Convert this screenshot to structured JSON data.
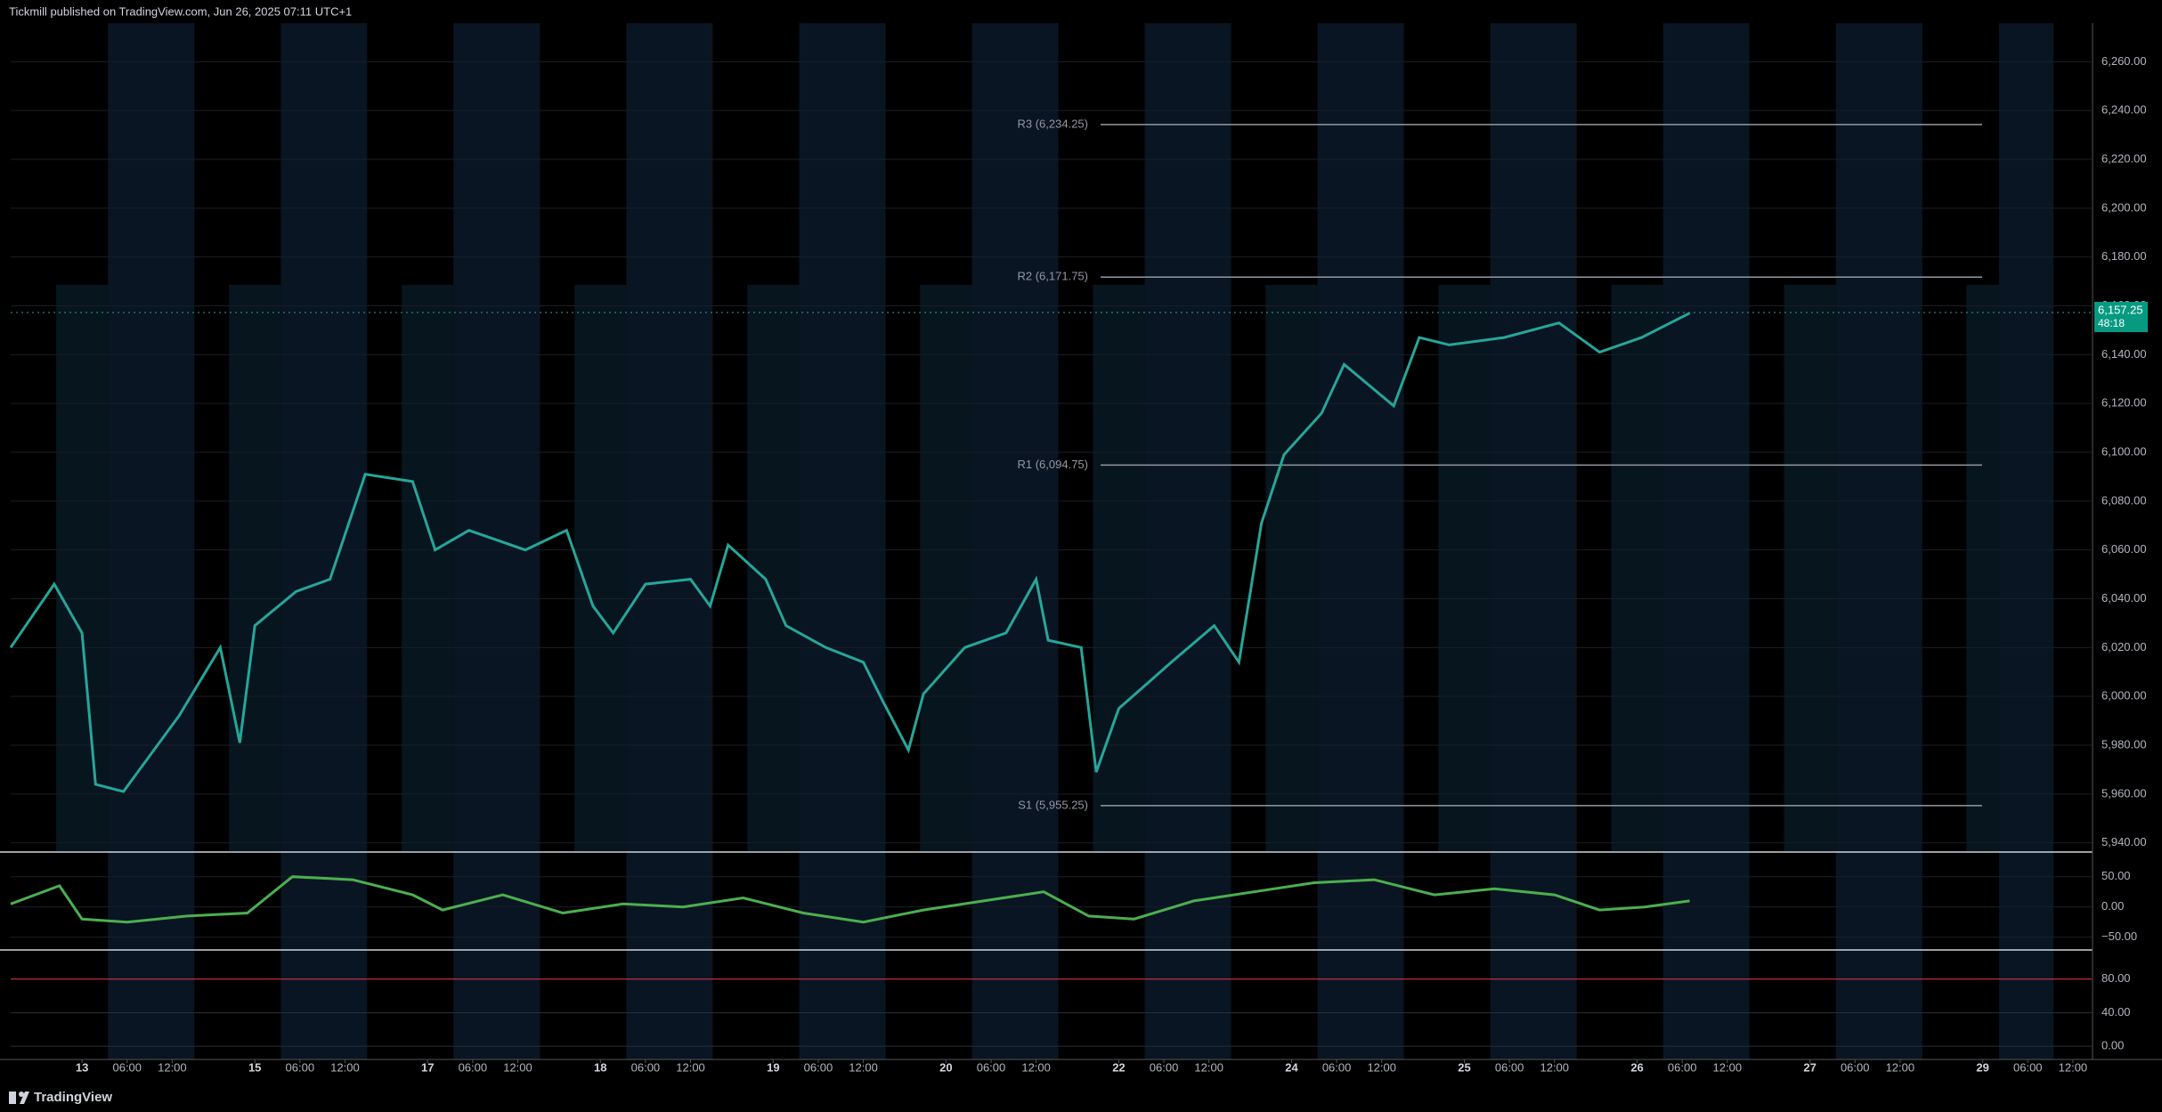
{
  "header": {
    "title": "Tickmill published on TradingView.com, Jun 26, 2025 07:11 UTC+1"
  },
  "footer": {
    "brand": "TradingView"
  },
  "chart_data": {
    "type": "line",
    "color": "#26a69a",
    "x": [
      -9.5,
      -3.7,
      0,
      1.8,
      5.5,
      12.9,
      18.4,
      21,
      23,
      28.5,
      33,
      37.7,
      44,
      47,
      51.5,
      59,
      64.5,
      68,
      70.7,
      75,
      81,
      83.6,
      86,
      91,
      93.7,
      99,
      104,
      106.6,
      110,
      112,
      117.5,
      123,
      127,
      128.6,
      133,
      135,
      138,
      145,
      150.7,
      154,
      157,
      160,
      165,
      168,
      174.6,
      178,
      182,
      189.3,
      196.6,
      202,
      207.6,
      214
    ],
    "values": [
      6020,
      6046,
      6026,
      5964,
      5961,
      5992,
      6020,
      5981,
      6029,
      6043,
      6048,
      6091,
      6088,
      6060,
      6068,
      6060,
      6068,
      6037,
      6026,
      6046,
      6048,
      6037,
      6062,
      6048,
      6029,
      6020,
      6014,
      5998,
      5978,
      6001,
      6020,
      6026,
      6048,
      6023,
      6020,
      5969,
      5995,
      6014,
      6029,
      6014,
      6071,
      6099,
      6116,
      6136,
      6119,
      6147,
      6144,
      6147,
      6153,
      6141,
      6147,
      6157
    ],
    "xlim": [
      -9.5,
      267.5
    ],
    "ylim": [
      5936.6,
      6275.8
    ],
    "yticks": [
      {
        "value": 6260,
        "label": "6,260.00"
      },
      {
        "value": 6240,
        "label": "6,240.00"
      },
      {
        "value": 6220,
        "label": "6,220.00"
      },
      {
        "value": 6200,
        "label": "6,200.00"
      },
      {
        "value": 6180,
        "label": "6,180.00"
      },
      {
        "value": 6160,
        "label": "6,160.00"
      },
      {
        "value": 6140,
        "label": "6,140.00"
      },
      {
        "value": 6120,
        "label": "6,120.00"
      },
      {
        "value": 6100,
        "label": "6,100.00"
      },
      {
        "value": 6080,
        "label": "6,080.00"
      },
      {
        "value": 6060,
        "label": "6,060.00"
      },
      {
        "value": 6040,
        "label": "6,040.00"
      },
      {
        "value": 6020,
        "label": "6,020.00"
      },
      {
        "value": 6000,
        "label": "6,000.00"
      },
      {
        "value": 5980,
        "label": "5,980.00"
      },
      {
        "value": 5960,
        "label": "5,960.00"
      },
      {
        "value": 5940,
        "label": "5,940.00"
      }
    ],
    "xticks": [
      {
        "value": 0,
        "label": "13"
      },
      {
        "value": 6,
        "label": "06:00"
      },
      {
        "value": 12,
        "label": "12:00"
      },
      {
        "value": 23,
        "label": "15"
      },
      {
        "value": 29,
        "label": "06:00"
      },
      {
        "value": 35,
        "label": "12:00"
      },
      {
        "value": 46,
        "label": "17"
      },
      {
        "value": 52,
        "label": "06:00"
      },
      {
        "value": 58,
        "label": "12:00"
      },
      {
        "value": 69,
        "label": "18"
      },
      {
        "value": 75,
        "label": "06:00"
      },
      {
        "value": 81,
        "label": "12:00"
      },
      {
        "value": 92,
        "label": "19"
      },
      {
        "value": 98,
        "label": "06:00"
      },
      {
        "value": 104,
        "label": "12:00"
      },
      {
        "value": 115,
        "label": "20"
      },
      {
        "value": 121,
        "label": "06:00"
      },
      {
        "value": 127,
        "label": "12:00"
      },
      {
        "value": 138,
        "label": "22"
      },
      {
        "value": 144,
        "label": "06:00"
      },
      {
        "value": 150,
        "label": "12:00"
      },
      {
        "value": 161,
        "label": "24"
      },
      {
        "value": 167,
        "label": "06:00"
      },
      {
        "value": 173,
        "label": "12:00"
      },
      {
        "value": 184,
        "label": "25"
      },
      {
        "value": 190,
        "label": "06:00"
      },
      {
        "value": 196,
        "label": "12:00"
      },
      {
        "value": 207,
        "label": "26"
      },
      {
        "value": 213,
        "label": "06:00"
      },
      {
        "value": 219,
        "label": "12:00"
      },
      {
        "value": 230,
        "label": "27"
      },
      {
        "value": 236,
        "label": "06:00"
      },
      {
        "value": 242,
        "label": "12:00"
      },
      {
        "value": 253,
        "label": "29"
      },
      {
        "value": 259,
        "label": "06:00"
      },
      {
        "value": 265,
        "label": "12:00"
      }
    ],
    "levels": [
      {
        "value": 6234.25,
        "label": "R3 (6,234.25)"
      },
      {
        "value": 6171.75,
        "label": "R2 (6,171.75)"
      },
      {
        "value": 6094.75,
        "label": "R1 (6,094.75)"
      },
      {
        "value": 5955.25,
        "label": "S1 (5,955.25)"
      }
    ],
    "last_price": {
      "value": 6157.25,
      "label": "6,157.25"
    },
    "countdown": "48:18",
    "oscillator": {
      "x": [
        -9.5,
        -3,
        0,
        6,
        14,
        22,
        28,
        36,
        44,
        48,
        56,
        64,
        72,
        80,
        88,
        96,
        104,
        112,
        120,
        128,
        134,
        140,
        148,
        156,
        164,
        172,
        180,
        188,
        196,
        202,
        208,
        214
      ],
      "values": [
        5,
        35,
        -20,
        -25,
        -15,
        -10,
        50,
        45,
        20,
        -5,
        20,
        -10,
        5,
        0,
        15,
        -10,
        -25,
        -5,
        10,
        25,
        -15,
        -20,
        10,
        25,
        40,
        45,
        20,
        30,
        20,
        -5,
        0,
        10
      ],
      "ylim": [
        -68.2,
        86.4
      ],
      "yticks": [
        {
          "value": 50,
          "label": "50.00"
        },
        {
          "value": 0,
          "label": "0.00"
        },
        {
          "value": -50,
          "label": "−50.00"
        }
      ]
    },
    "stochastic": {
      "ylim": [
        -14.7,
        112.7
      ],
      "yticks": [
        {
          "value": 80,
          "label": "80.00"
        },
        {
          "value": 40,
          "label": "40.00"
        },
        {
          "value": 0,
          "label": "0.00"
        }
      ]
    }
  }
}
